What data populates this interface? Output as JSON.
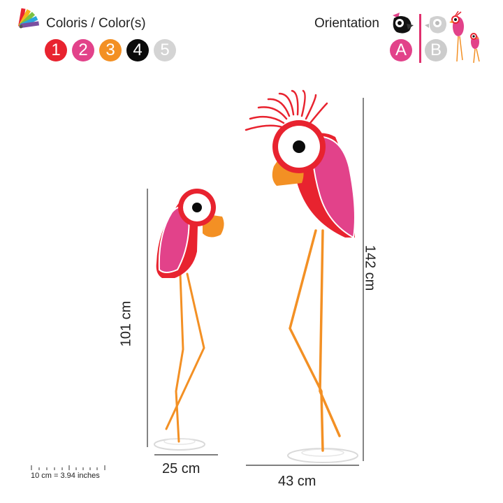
{
  "header": {
    "colors_title": "Coloris / Color(s)",
    "orientation_title": "Orientation",
    "palette_icon": "color-fan-icon"
  },
  "swatches": [
    {
      "label": "1",
      "color": "#e8232f"
    },
    {
      "label": "2",
      "color": "#e2428a"
    },
    {
      "label": "3",
      "color": "#f39024"
    },
    {
      "label": "4",
      "color": "#0b0b0b"
    },
    {
      "label": "5",
      "color": "#d4d4d4"
    }
  ],
  "orientation": {
    "options": [
      {
        "label": "A",
        "color": "#e2428a"
      },
      {
        "label": "B",
        "color": "#cccccc"
      }
    ],
    "divider_color": "#e0306e"
  },
  "dimensions": {
    "small_height": "101 cm",
    "large_height": "142 cm",
    "small_width": "25 cm",
    "large_width": "43 cm"
  },
  "scale_note": "10 cm = 3.94 inches",
  "colors": {
    "red": "#e8232f",
    "pink": "#e2428a",
    "orange": "#f39024",
    "black": "#0b0b0b",
    "base_grey": "#d9d9d9"
  }
}
